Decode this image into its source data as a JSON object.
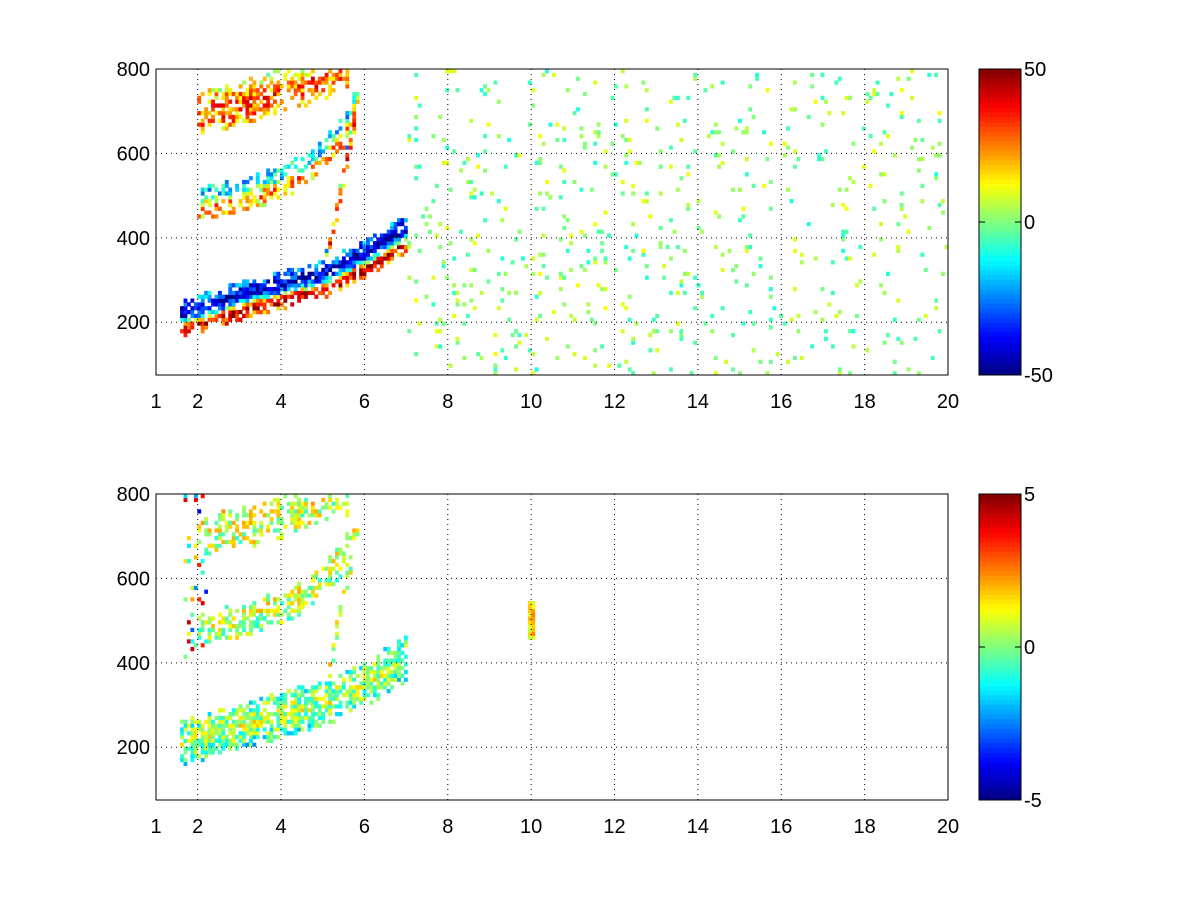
{
  "figure": {
    "colormap": "jet",
    "background": "#ffffff",
    "grid_color": "#000000"
  },
  "chart_data": [
    {
      "type": "heatmap",
      "title": "",
      "xlabel": "",
      "ylabel": "",
      "xlim": [
        1,
        20
      ],
      "ylim": [
        75,
        800
      ],
      "clim": [
        -50,
        50
      ],
      "grid": true,
      "grid_style": "dotted",
      "x_ticks": [
        1,
        2,
        4,
        6,
        8,
        10,
        12,
        14,
        16,
        18,
        20
      ],
      "x_ticklabels": [
        "1",
        "2",
        "4",
        "6",
        "8",
        "10",
        "12",
        "14",
        "16",
        "18",
        "20"
      ],
      "x_grid": [
        2,
        4,
        6,
        8,
        10,
        12,
        14,
        16,
        18,
        20
      ],
      "y_ticks": [
        200,
        400,
        600,
        800
      ],
      "y_ticklabels": [
        "200",
        "400",
        "600",
        "800"
      ],
      "colorbar": {
        "ticks": [
          -50,
          0,
          50
        ],
        "ticklabels": [
          "-50",
          "0",
          "50"
        ],
        "position": "right"
      },
      "patterns": [
        {
          "kind": "band",
          "x": [
            1.6,
            2.0,
            2.5,
            3.0,
            3.5,
            4.0,
            4.5,
            5.0,
            5.4,
            5.8,
            6.2,
            6.6,
            7.0
          ],
          "y": [
            210,
            220,
            235,
            250,
            265,
            275,
            290,
            300,
            320,
            340,
            360,
            385,
            410
          ],
          "halfwidth": 45,
          "profile": [
            [
              -1.0,
              25
            ],
            [
              -0.45,
              45
            ],
            [
              -0.1,
              -20
            ],
            [
              0.3,
              -45
            ],
            [
              1.0,
              -20
            ]
          ],
          "density": 0.9
        },
        {
          "kind": "band",
          "x": [
            2.0,
            2.5,
            3.0,
            3.5,
            4.0,
            4.5,
            5.0,
            5.5,
            5.8
          ],
          "y": [
            480,
            490,
            500,
            515,
            530,
            555,
            590,
            650,
            720
          ],
          "halfwidth": 40,
          "profile": [
            [
              -1.0,
              15
            ],
            [
              -0.2,
              25
            ],
            [
              0.4,
              -20
            ],
            [
              1.0,
              -10
            ]
          ],
          "density": 0.65
        },
        {
          "kind": "band",
          "x": [
            2.0,
            2.5,
            3.0,
            3.5,
            4.0,
            4.5,
            5.0,
            5.3,
            5.6
          ],
          "y": [
            700,
            710,
            720,
            730,
            745,
            760,
            780,
            795,
            800
          ],
          "halfwidth": 55,
          "profile": [
            [
              -1.0,
              20
            ],
            [
              0.0,
              30
            ],
            [
              1.0,
              5
            ]
          ],
          "density": 0.65
        },
        {
          "kind": "band",
          "x": [
            5.0,
            5.3,
            5.6,
            5.9
          ],
          "y": [
            300,
            450,
            600,
            760
          ],
          "halfwidth": 30,
          "profile": [
            [
              -1.0,
              20
            ],
            [
              0.0,
              35
            ],
            [
              1.0,
              -30
            ]
          ],
          "density": 0.55
        },
        {
          "kind": "noise",
          "x": [
            7.0,
            20.0
          ],
          "y": [
            75,
            800
          ],
          "values": [
            -10,
            12
          ],
          "density": 0.05
        }
      ]
    },
    {
      "type": "heatmap",
      "title": "",
      "xlabel": "",
      "ylabel": "",
      "xlim": [
        1,
        20
      ],
      "ylim": [
        75,
        800
      ],
      "clim": [
        -5,
        5
      ],
      "grid": true,
      "grid_style": "dotted",
      "x_ticks": [
        1,
        2,
        4,
        6,
        8,
        10,
        12,
        14,
        16,
        18,
        20
      ],
      "x_ticklabels": [
        "1",
        "2",
        "4",
        "6",
        "8",
        "10",
        "12",
        "14",
        "16",
        "18",
        "20"
      ],
      "x_grid": [
        2,
        4,
        6,
        8,
        10,
        12,
        14,
        16,
        18,
        20
      ],
      "y_ticks": [
        200,
        400,
        600,
        800
      ],
      "y_ticklabels": [
        "200",
        "400",
        "600",
        "800"
      ],
      "colorbar": {
        "ticks": [
          -5,
          0,
          5
        ],
        "ticklabels": [
          "-5",
          "0",
          "5"
        ],
        "position": "right"
      },
      "patterns": [
        {
          "kind": "band",
          "x": [
            1.6,
            2.0,
            2.5,
            3.0,
            3.5,
            4.0,
            4.5,
            5.0,
            5.4,
            5.8,
            6.2,
            6.6,
            7.0
          ],
          "y": [
            210,
            220,
            235,
            250,
            265,
            275,
            290,
            300,
            320,
            340,
            360,
            385,
            410
          ],
          "halfwidth": 55,
          "profile": [
            [
              -1.0,
              -1.0
            ],
            [
              0.0,
              0.5
            ],
            [
              1.0,
              -0.5
            ]
          ],
          "density": 0.85
        },
        {
          "kind": "band",
          "x": [
            2.0,
            2.5,
            3.0,
            3.5,
            4.0,
            4.5,
            5.0,
            5.5,
            5.8
          ],
          "y": [
            480,
            490,
            500,
            515,
            530,
            555,
            590,
            650,
            720
          ],
          "halfwidth": 40,
          "profile": [
            [
              -1.0,
              0.3
            ],
            [
              1.0,
              0.8
            ]
          ],
          "density": 0.6
        },
        {
          "kind": "band",
          "x": [
            2.0,
            2.5,
            3.0,
            3.5,
            4.0,
            4.5,
            5.0,
            5.3,
            5.6
          ],
          "y": [
            700,
            710,
            720,
            730,
            745,
            760,
            780,
            795,
            800
          ],
          "halfwidth": 50,
          "profile": [
            [
              -1.0,
              0.5
            ],
            [
              1.0,
              1.0
            ]
          ],
          "density": 0.55
        },
        {
          "kind": "band",
          "x": [
            5.0,
            5.3,
            5.6,
            5.9
          ],
          "y": [
            300,
            450,
            600,
            760
          ],
          "halfwidth": 30,
          "profile": [
            [
              -1.0,
              0.5
            ],
            [
              1.0,
              1.2
            ]
          ],
          "density": 0.5
        },
        {
          "kind": "noise",
          "x": [
            1.7,
            2.2
          ],
          "y": [
            400,
            800
          ],
          "values": [
            -5,
            5
          ],
          "density": 0.12
        },
        {
          "kind": "noise",
          "x": [
            9.95,
            10.1
          ],
          "y": [
            460,
            550
          ],
          "values": [
            0.5,
            2.5
          ],
          "density": 0.8
        }
      ]
    }
  ]
}
